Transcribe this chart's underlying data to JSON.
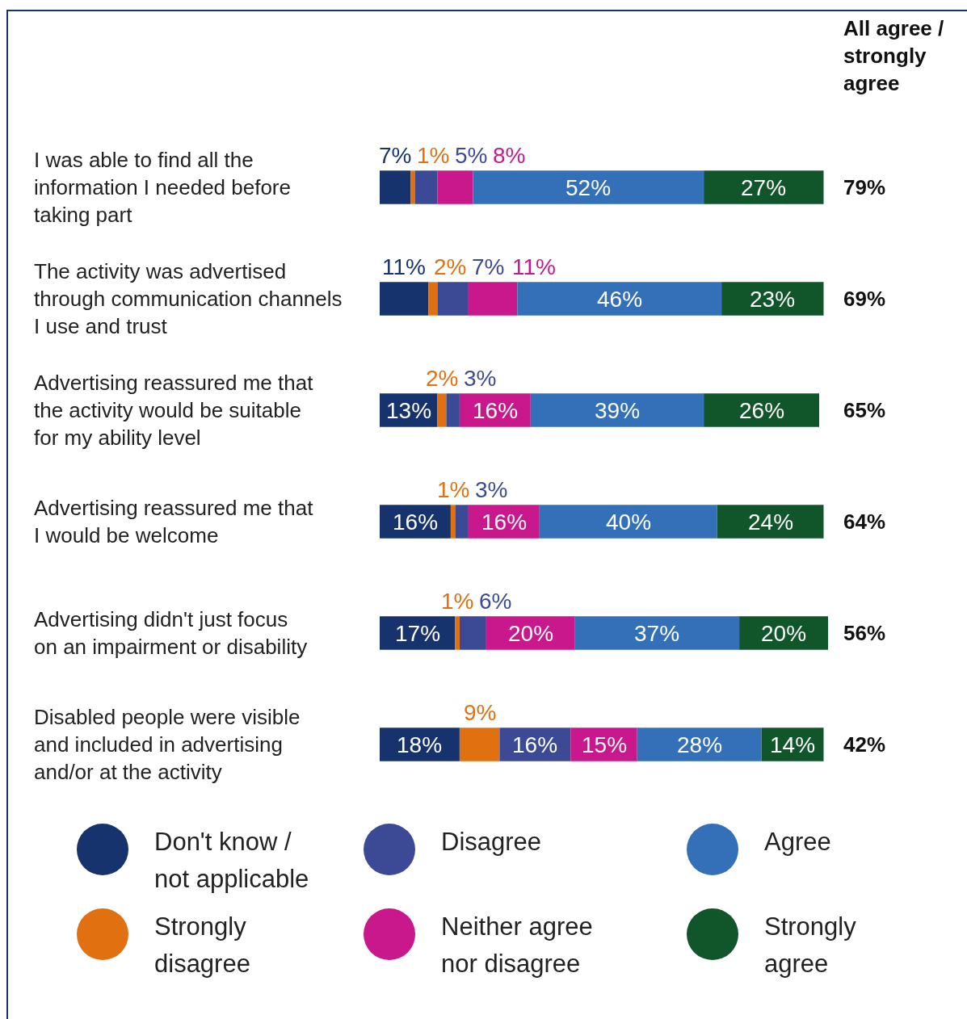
{
  "chart_data": {
    "type": "bar",
    "orientation": "horizontal",
    "stacked": true,
    "categories": [
      "I was able to find all the information I needed before taking part",
      "The activity was advertised through communication channels I use and trust",
      "Advertising reassured me that the activity would be suitable for my ability level",
      "Advertising reassured me that I would be welcome",
      "Advertising didn't just focus on an impairment or disability",
      "Disabled people were visible and included in advertising and/or at the activity"
    ],
    "series": [
      {
        "name": "Don't know / not applicable",
        "color": "#17336e",
        "values": [
          7,
          11,
          13,
          16,
          17,
          18
        ],
        "value_labels": [
          "7%",
          "11%",
          "13%",
          "16%",
          "17%",
          "18%"
        ]
      },
      {
        "name": "Strongly disagree",
        "color": "#e07010",
        "values": [
          1,
          2,
          2,
          1,
          1,
          9
        ],
        "value_labels": [
          "1%",
          "2%",
          "2%",
          "1%",
          "1%",
          "9%"
        ]
      },
      {
        "name": "Disagree",
        "color": "#3c4a96",
        "values": [
          5,
          7,
          3,
          3,
          6,
          16
        ],
        "value_labels": [
          "5%",
          "7%",
          "3%",
          "3%",
          "6%",
          "16%"
        ]
      },
      {
        "name": "Neither agree nor disagree",
        "color": "#c8188c",
        "values": [
          8,
          11,
          16,
          16,
          20,
          15
        ],
        "value_labels": [
          "8%",
          "11%",
          "16%",
          "16%",
          "20%",
          "15%"
        ]
      },
      {
        "name": "Agree",
        "color": "#3470b8",
        "values": [
          52,
          46,
          39,
          40,
          37,
          28
        ],
        "value_labels": [
          "52%",
          "46%",
          "39%",
          "40%",
          "37%",
          "28%"
        ]
      },
      {
        "name": "Strongly agree",
        "color": "#11552b",
        "values": [
          27,
          23,
          26,
          24,
          20,
          14
        ],
        "value_labels": [
          "27%",
          "23%",
          "26%",
          "24%",
          "20%",
          "14%"
        ]
      }
    ],
    "annotations": [
      "All agree / strongly agree",
      "79%",
      "69%",
      "65%",
      "64%",
      "56%",
      "42%"
    ],
    "legend": "bottom",
    "tick_labels": "y"
  }
}
